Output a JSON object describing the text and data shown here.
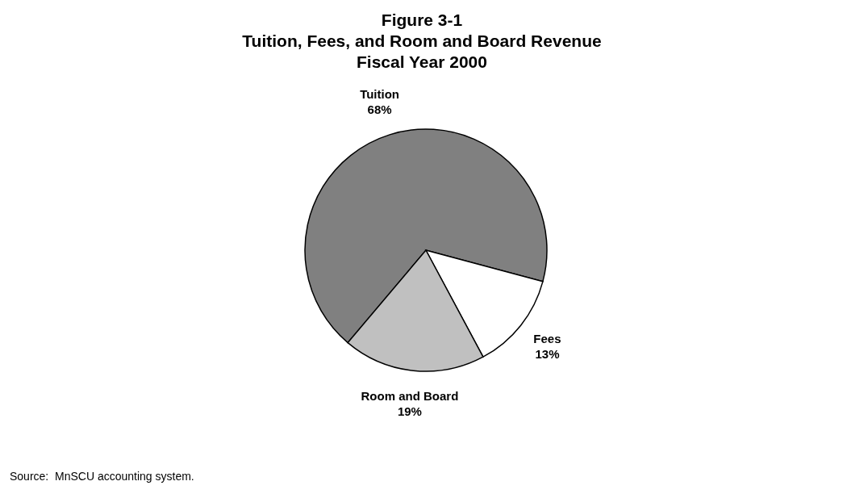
{
  "chart_data": {
    "type": "pie",
    "title": "Figure 3-1\nTuition, Fees, and Room and Board Revenue\nFiscal Year 2000",
    "categories": [
      "Tuition",
      "Fees",
      "Room and Board"
    ],
    "values": [
      68,
      13,
      19
    ],
    "value_labels": [
      "68%",
      "13%",
      "19%"
    ],
    "colors": [
      "#808080",
      "#ffffff",
      "#c0c0c0"
    ],
    "legend": false,
    "annotations": [
      "Source:  MnSCU accounting system."
    ]
  }
}
